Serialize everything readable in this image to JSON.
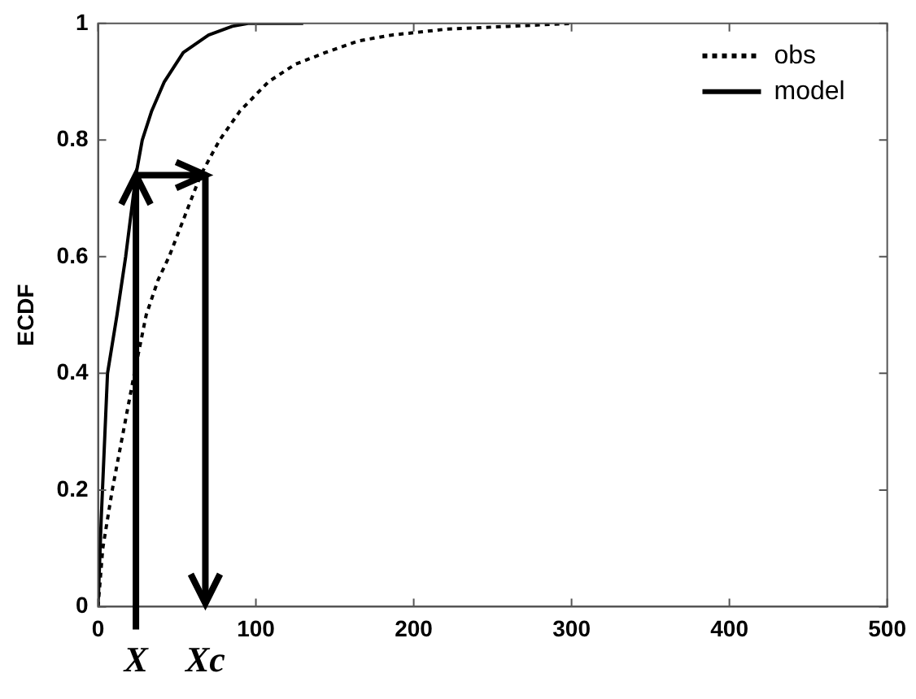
{
  "chart_data": {
    "type": "line",
    "ylabel": "ECDF",
    "xlim": [
      0,
      500
    ],
    "xticks": [
      0,
      100,
      200,
      300,
      400,
      500
    ],
    "ylim": [
      0,
      1
    ],
    "yticks": [
      0,
      0.2,
      0.4,
      0.6,
      0.8,
      1
    ],
    "grid": false,
    "legend": "top right",
    "marker": "none",
    "series": [
      {
        "name": "obs",
        "color": "#000000",
        "line_style": "dotted",
        "x": [
          0,
          3,
          9,
          16,
          23,
          30.5,
          38,
          45,
          55,
          65,
          77,
          90,
          108,
          125,
          144,
          165,
          186,
          220,
          260,
          300
        ],
        "values": [
          0,
          0.1,
          0.2,
          0.3,
          0.4,
          0.5,
          0.56,
          0.6,
          0.67,
          0.74,
          0.8,
          0.85,
          0.9,
          0.93,
          0.95,
          0.97,
          0.98,
          0.99,
          0.995,
          1
        ]
      },
      {
        "name": "model",
        "color": "#000000",
        "line_style": "solid",
        "x": [
          0,
          2,
          6,
          12,
          17.5,
          24,
          28,
          34,
          42,
          54,
          70,
          85,
          95,
          130
        ],
        "values": [
          0,
          0.15,
          0.4,
          0.5,
          0.6,
          0.74,
          0.8,
          0.85,
          0.9,
          0.95,
          0.98,
          0.995,
          1,
          1
        ]
      }
    ],
    "ref_lines": [
      {
        "axis": "x",
        "value": 24,
        "label": "X",
        "color": "#000000"
      },
      {
        "axis": "x",
        "value": 68,
        "label": "Xc",
        "color": "#000000"
      }
    ]
  }
}
